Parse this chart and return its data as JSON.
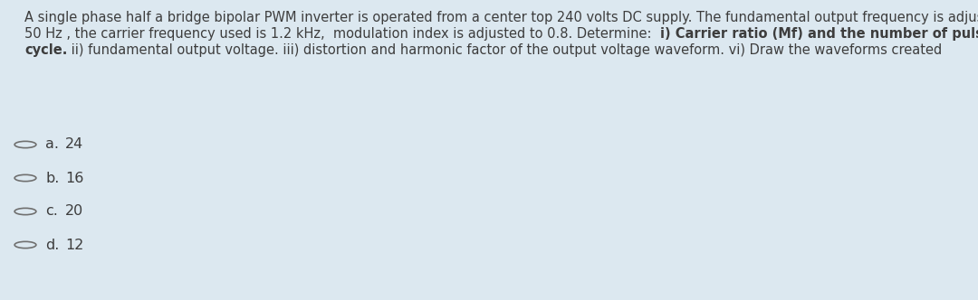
{
  "background_color": "#dce8f0",
  "line1": "A single phase half a bridge bipolar PWM inverter is operated from a center top 240 volts DC supply. The fundamental output frequency is adjusted to",
  "line2_normal_a": "50 Hz , the carrier frequency used is 1.2 kHz,  modulation index is adjusted to 0.8. Determine:  ",
  "line2_bold": "i) Carrier ratio (Mf) and the number of pulses per",
  "line3_bold": "cycle.",
  "line3_normal": " ii) fundamental output voltage. iii) distortion and harmonic factor of the output voltage waveform. vi) Draw the waveforms created",
  "options": [
    {
      "label": "a.",
      "value": "24"
    },
    {
      "label": "b.",
      "value": "16"
    },
    {
      "label": "c.",
      "value": "20"
    },
    {
      "label": "d.",
      "value": "12"
    }
  ],
  "text_color": "#3d3d3d",
  "font_size_question": 10.5,
  "font_size_options": 11.5,
  "bg": "#dce8f0"
}
